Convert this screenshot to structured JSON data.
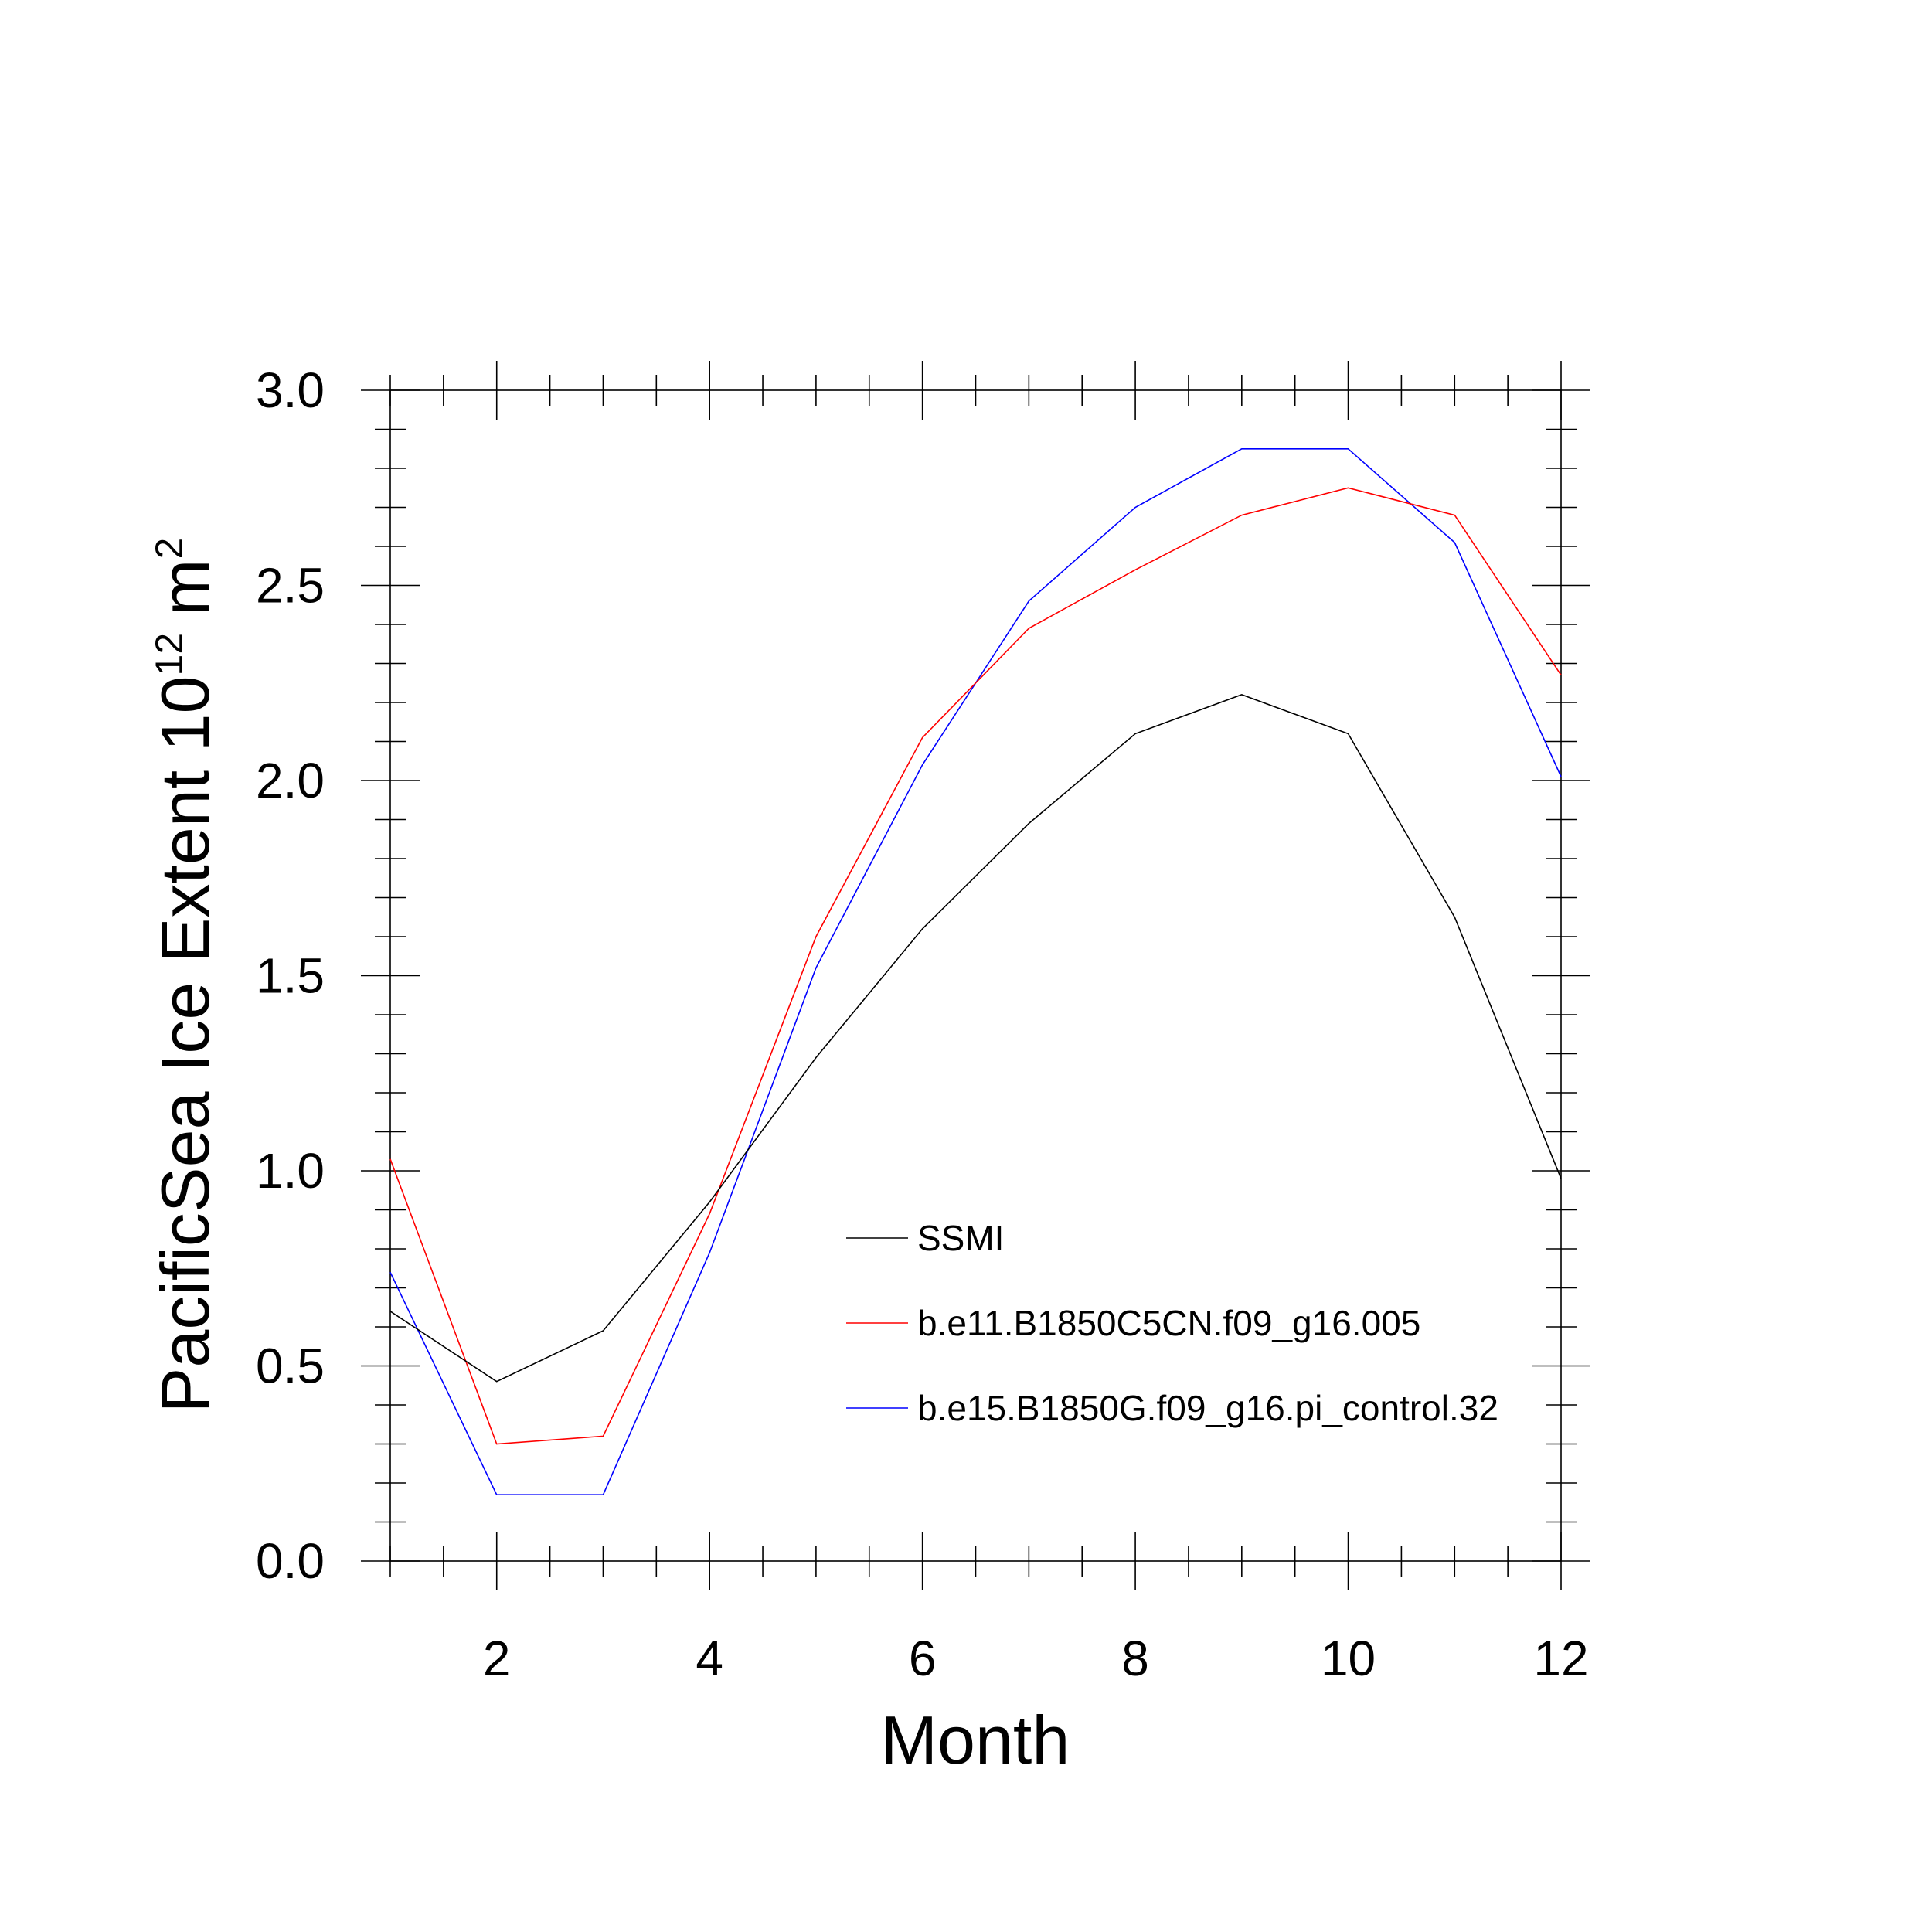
{
  "chart_data": {
    "type": "line",
    "xlabel": "Month",
    "ylabel": {
      "text": "PacificSea Ice Extent 10",
      "exponent": "12",
      "unit": "m",
      "unit_exponent": "2"
    },
    "xlim": [
      1,
      12
    ],
    "ylim": [
      0,
      3
    ],
    "x_ticks": [
      2,
      4,
      6,
      8,
      10,
      12
    ],
    "x_tick_labels": [
      "2",
      "4",
      "6",
      "8",
      "10",
      "12"
    ],
    "y_ticks": [
      0,
      0.5,
      1,
      1.5,
      2,
      2.5,
      3
    ],
    "y_tick_labels": [
      "0.0",
      "0.5",
      "1.0",
      "1.5",
      "2.0",
      "2.5",
      "3.0"
    ],
    "x_minor_step": 0.5,
    "y_minor_step": 0.1,
    "grid": false,
    "legend_position": "lower-right",
    "x": [
      1,
      2,
      3,
      4,
      5,
      6,
      7,
      8,
      9,
      10,
      11,
      12
    ],
    "series": [
      {
        "name": "SSMI",
        "color": "#000000",
        "values": [
          0.64,
          0.46,
          0.59,
          0.92,
          1.29,
          1.62,
          1.89,
          2.12,
          2.22,
          2.12,
          1.65,
          0.98
        ]
      },
      {
        "name": "b.e11.B1850C5CN.f09_g16.005",
        "color": "#ff0000",
        "values": [
          1.03,
          0.3,
          0.32,
          0.89,
          1.6,
          2.11,
          2.39,
          2.54,
          2.68,
          2.75,
          2.68,
          2.27
        ]
      },
      {
        "name": "b.e15.B1850G.f09_g16.pi_control.32",
        "color": "#0000ff",
        "values": [
          0.74,
          0.17,
          0.17,
          0.79,
          1.52,
          2.04,
          2.46,
          2.7,
          2.85,
          2.85,
          2.61,
          2.01
        ]
      }
    ]
  }
}
